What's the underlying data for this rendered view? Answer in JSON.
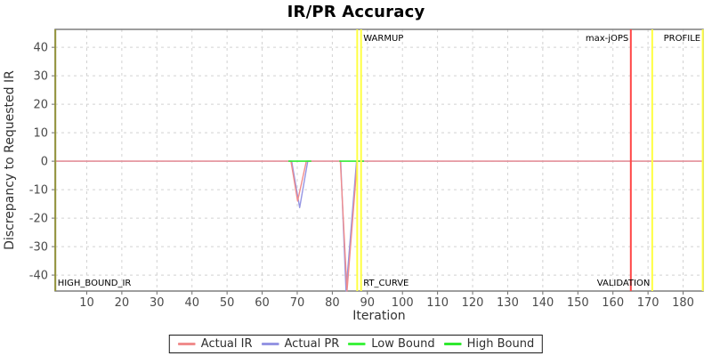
{
  "page": {
    "title": "IR/PR Accuracy"
  },
  "chart_data": {
    "type": "line",
    "title": "IR/PR Accuracy",
    "xlabel": "Iteration",
    "ylabel": "Discrepancy to Requested IR",
    "xlim": [
      1,
      185.7
    ],
    "ylim": [
      -45.6,
      46.3
    ],
    "x_ticks": [
      10,
      20,
      30,
      40,
      50,
      60,
      70,
      80,
      90,
      100,
      110,
      120,
      130,
      140,
      150,
      160,
      170,
      180
    ],
    "y_ticks": [
      -40,
      -30,
      -20,
      -10,
      0,
      10,
      20,
      30,
      40
    ],
    "grid": true,
    "legend_position": "bottom",
    "series": [
      {
        "name": "Actual IR",
        "color": "#f08c8c",
        "points": [
          [
            1,
            0
          ],
          [
            68.2,
            0
          ],
          [
            70.1,
            -14
          ],
          [
            72.6,
            0
          ],
          [
            82.3,
            0
          ],
          [
            84.2,
            -45.6
          ],
          [
            87.1,
            0
          ],
          [
            185.7,
            0
          ]
        ]
      },
      {
        "name": "Actual PR",
        "color": "#9595e3",
        "points": [
          [
            1,
            0
          ],
          [
            68.4,
            0
          ],
          [
            70.7,
            -16.3
          ],
          [
            73,
            0
          ],
          [
            82.4,
            0
          ],
          [
            83.9,
            -45.6
          ],
          [
            86.9,
            0
          ],
          [
            185.7,
            0
          ]
        ]
      },
      {
        "name": "Low Bound",
        "color": "#3df23d",
        "points": [
          [
            67.5,
            0
          ],
          [
            74,
            0
          ],
          null,
          [
            82,
            0
          ],
          [
            89,
            0
          ]
        ]
      },
      {
        "name": "High Bound",
        "color": "#2fe82f",
        "points": [
          [
            67.5,
            0
          ],
          [
            74,
            0
          ],
          null,
          [
            82,
            0
          ],
          [
            89,
            0
          ]
        ]
      }
    ],
    "markers": [
      {
        "x": 1.05,
        "color": "#94943c",
        "labels": [
          {
            "text": "HIGH_BOUND_IR",
            "pos": "bottom",
            "align": "start"
          }
        ]
      },
      {
        "x": 87.1,
        "color": "#ffff42",
        "labels": []
      },
      {
        "x": 88.2,
        "color": "#ffff42",
        "labels": [
          {
            "text": "WARMUP",
            "pos": "top",
            "align": "start"
          },
          {
            "text": "RT_CURVE",
            "pos": "bottom",
            "align": "start"
          }
        ]
      },
      {
        "x": 165.1,
        "color": "#ff4545",
        "labels": [
          {
            "text": "max-jOPS",
            "pos": "top",
            "align": "end"
          }
        ]
      },
      {
        "x": 171.2,
        "color": "#ffff42",
        "labels": [
          {
            "text": "VALIDATION",
            "pos": "bottom",
            "align": "end"
          }
        ]
      },
      {
        "x": 185.6,
        "color": "#ffff42",
        "labels": [
          {
            "text": "PROFILE",
            "pos": "top",
            "align": "end"
          }
        ]
      }
    ],
    "style": {
      "grid_color": "#d2d2d2",
      "border_color": "#7d7d7d",
      "tick_color": "#6e6e6e",
      "tick_label_color": "#4a4a4a",
      "axis_label_color": "#333333",
      "marker_label_color": "#000000"
    }
  }
}
